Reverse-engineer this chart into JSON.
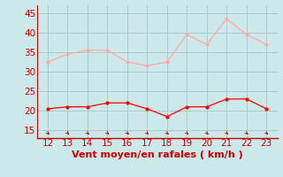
{
  "x": [
    12,
    13,
    14,
    15,
    16,
    17,
    18,
    19,
    20,
    21,
    22,
    23
  ],
  "wind_avg": [
    20.5,
    21,
    21,
    22,
    22,
    20.5,
    18.5,
    21,
    21,
    23,
    23,
    20.5
  ],
  "wind_gust": [
    32.5,
    34.5,
    35.5,
    35.5,
    32.5,
    31.5,
    32.5,
    39.5,
    37,
    43.5,
    39.5,
    37
  ],
  "avg_color": "#ff0000",
  "gust_color": "#ffaaaa",
  "bg_color": "#cce8e8",
  "grid_color": "#aacccc",
  "axis_color": "#cc0000",
  "xlabel": "Vent moyen/en rafales ( km/h )",
  "ylim": [
    13,
    47
  ],
  "yticks": [
    15,
    20,
    25,
    30,
    35,
    40,
    45
  ],
  "xticks": [
    12,
    13,
    14,
    15,
    16,
    17,
    18,
    19,
    20,
    21,
    22,
    23
  ],
  "tick_fontsize": 7.5,
  "xlabel_fontsize": 8
}
